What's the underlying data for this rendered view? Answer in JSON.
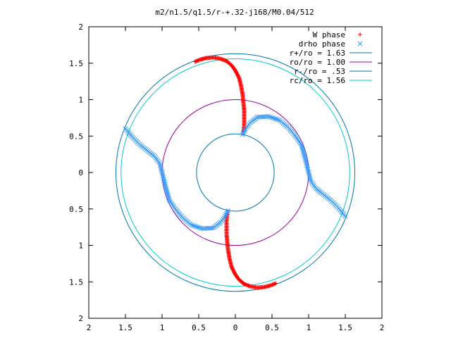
{
  "chart_data": {
    "type": "scatter",
    "title": "m2/n1.5/q1.5/r-+.32-j168/M0.04/512",
    "xlabel": "",
    "ylabel": "",
    "xlim": [
      -2,
      2
    ],
    "ylim": [
      -2,
      2
    ],
    "xticks": [
      -2,
      -1.5,
      -1,
      -0.5,
      0,
      0.5,
      1,
      1.5,
      2
    ],
    "yticks": [
      -2,
      -1.5,
      -1,
      -0.5,
      0,
      0.5,
      1,
      1.5,
      2
    ],
    "xtick_labels": [
      "2",
      "1.5",
      "1",
      "0.5",
      "0",
      "0.5",
      "1",
      "1.5",
      "2"
    ],
    "ytick_labels": [
      "2",
      "1.5",
      "1",
      "0.5",
      "0",
      "0.5",
      "1",
      "1.5",
      "2"
    ],
    "grid": false,
    "legend_position": "top-right",
    "series": [
      {
        "name": "W phase",
        "kind": "points",
        "marker": "+",
        "color": "#ff0000",
        "points": [
          [
            -0.55,
            1.52
          ],
          [
            -0.48,
            1.55
          ],
          [
            -0.4,
            1.57
          ],
          [
            -0.3,
            1.58
          ],
          [
            -0.2,
            1.56
          ],
          [
            -0.12,
            1.53
          ],
          [
            -0.05,
            1.47
          ],
          [
            0.0,
            1.4
          ],
          [
            0.05,
            1.3
          ],
          [
            0.08,
            1.18
          ],
          [
            0.1,
            1.06
          ],
          [
            0.11,
            0.96
          ],
          [
            0.12,
            0.85
          ],
          [
            0.12,
            0.75
          ],
          [
            0.12,
            0.65
          ],
          [
            0.11,
            0.55
          ],
          [
            0.55,
            -1.52
          ],
          [
            0.48,
            -1.55
          ],
          [
            0.4,
            -1.57
          ],
          [
            0.3,
            -1.58
          ],
          [
            0.2,
            -1.56
          ],
          [
            0.12,
            -1.53
          ],
          [
            0.05,
            -1.47
          ],
          [
            0.0,
            -1.4
          ],
          [
            -0.05,
            -1.3
          ],
          [
            -0.08,
            -1.18
          ],
          [
            -0.1,
            -1.06
          ],
          [
            -0.11,
            -0.96
          ],
          [
            -0.12,
            -0.85
          ],
          [
            -0.12,
            -0.75
          ],
          [
            -0.12,
            -0.65
          ],
          [
            -0.11,
            -0.55
          ]
        ]
      },
      {
        "name": "drho phase",
        "kind": "points",
        "marker": "x",
        "color": "#3399ff",
        "points": [
          [
            0.1,
            0.52
          ],
          [
            0.14,
            0.6
          ],
          [
            0.2,
            0.68
          ],
          [
            0.3,
            0.76
          ],
          [
            0.45,
            0.77
          ],
          [
            0.6,
            0.72
          ],
          [
            0.72,
            0.62
          ],
          [
            0.82,
            0.5
          ],
          [
            0.9,
            0.38
          ],
          [
            0.95,
            0.2
          ],
          [
            1.0,
            0.0
          ],
          [
            1.03,
            -0.12
          ],
          [
            1.1,
            -0.22
          ],
          [
            1.2,
            -0.3
          ],
          [
            1.3,
            -0.38
          ],
          [
            1.4,
            -0.48
          ],
          [
            1.5,
            -0.6
          ],
          [
            -0.1,
            -0.52
          ],
          [
            -0.14,
            -0.6
          ],
          [
            -0.2,
            -0.68
          ],
          [
            -0.3,
            -0.76
          ],
          [
            -0.45,
            -0.77
          ],
          [
            -0.6,
            -0.72
          ],
          [
            -0.72,
            -0.62
          ],
          [
            -0.82,
            -0.5
          ],
          [
            -0.9,
            -0.38
          ],
          [
            -0.95,
            -0.2
          ],
          [
            -1.0,
            0.0
          ],
          [
            -1.03,
            0.12
          ],
          [
            -1.1,
            0.22
          ],
          [
            -1.2,
            0.3
          ],
          [
            -1.3,
            0.38
          ],
          [
            -1.4,
            0.48
          ],
          [
            -1.5,
            0.6
          ]
        ]
      },
      {
        "name": "r+/ro = 1.63",
        "kind": "circle",
        "radius": 1.63,
        "color": "#0077aa"
      },
      {
        "name": "ro/ro = 1.00",
        "kind": "circle",
        "radius": 1.0,
        "color": "#990099"
      },
      {
        "name": "r-/ro = .53",
        "kind": "circle",
        "radius": 0.53,
        "color": "#0077aa"
      },
      {
        "name": "rc/ro = 1.56",
        "kind": "circle",
        "radius": 1.56,
        "color": "#00cccc"
      }
    ]
  }
}
